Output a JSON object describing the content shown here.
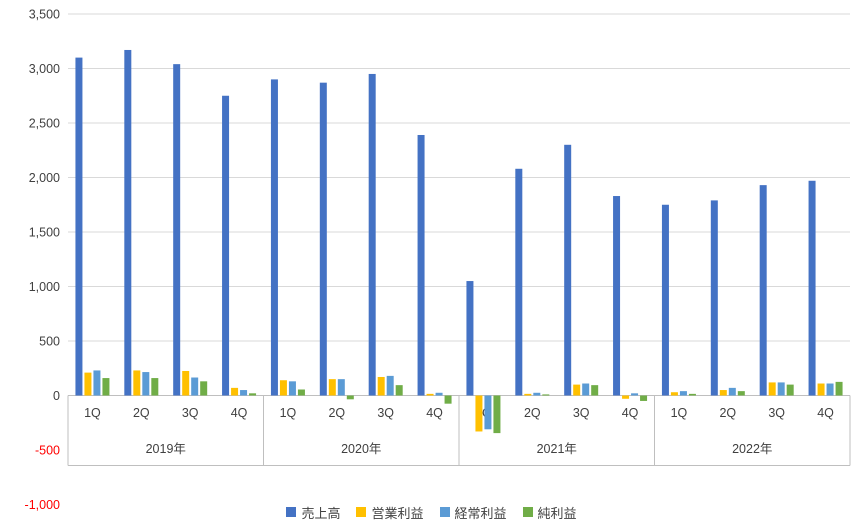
{
  "chart_data": {
    "type": "bar",
    "title": "",
    "categories": [
      "1Q",
      "2Q",
      "3Q",
      "4Q",
      "1Q",
      "2Q",
      "3Q",
      "4Q",
      "1Q",
      "2Q",
      "3Q",
      "4Q",
      "1Q",
      "2Q",
      "3Q",
      "4Q"
    ],
    "year_groups": [
      {
        "label": "2019年",
        "span": 4
      },
      {
        "label": "2020年",
        "span": 4
      },
      {
        "label": "2021年",
        "span": 4
      },
      {
        "label": "2022年",
        "span": 4
      }
    ],
    "series": [
      {
        "name": "売上高",
        "color": "#4472C4",
        "values": [
          3100,
          3170,
          3040,
          2750,
          2900,
          2870,
          2950,
          2390,
          1050,
          2080,
          2300,
          1830,
          1750,
          1790,
          1930,
          1970
        ]
      },
      {
        "name": "営業利益",
        "color": "#FFC000",
        "values": [
          210,
          230,
          225,
          70,
          140,
          150,
          170,
          15,
          -330,
          15,
          100,
          -30,
          30,
          50,
          120,
          110
        ]
      },
      {
        "name": "経常利益",
        "color": "#5B9BD5",
        "values": [
          230,
          215,
          165,
          50,
          130,
          150,
          180,
          25,
          -310,
          25,
          110,
          20,
          40,
          70,
          120,
          110
        ]
      },
      {
        "name": "純利益",
        "color": "#70AD47",
        "values": [
          160,
          160,
          130,
          20,
          55,
          -35,
          95,
          -75,
          -345,
          10,
          95,
          -50,
          15,
          40,
          100,
          125
        ]
      }
    ],
    "xlabel": "",
    "ylabel": "",
    "ylim": [
      -1000,
      3500
    ],
    "ytick_step": 500,
    "grid": true,
    "legend_position": "bottom"
  },
  "axis_style": {
    "tick_label_color": "#404040",
    "negative_tick_label_color": "#FF0000",
    "gridline_color": "#D9D9D9",
    "axis_line_color": "#BFBFBF",
    "category_label_color": "#404040"
  }
}
